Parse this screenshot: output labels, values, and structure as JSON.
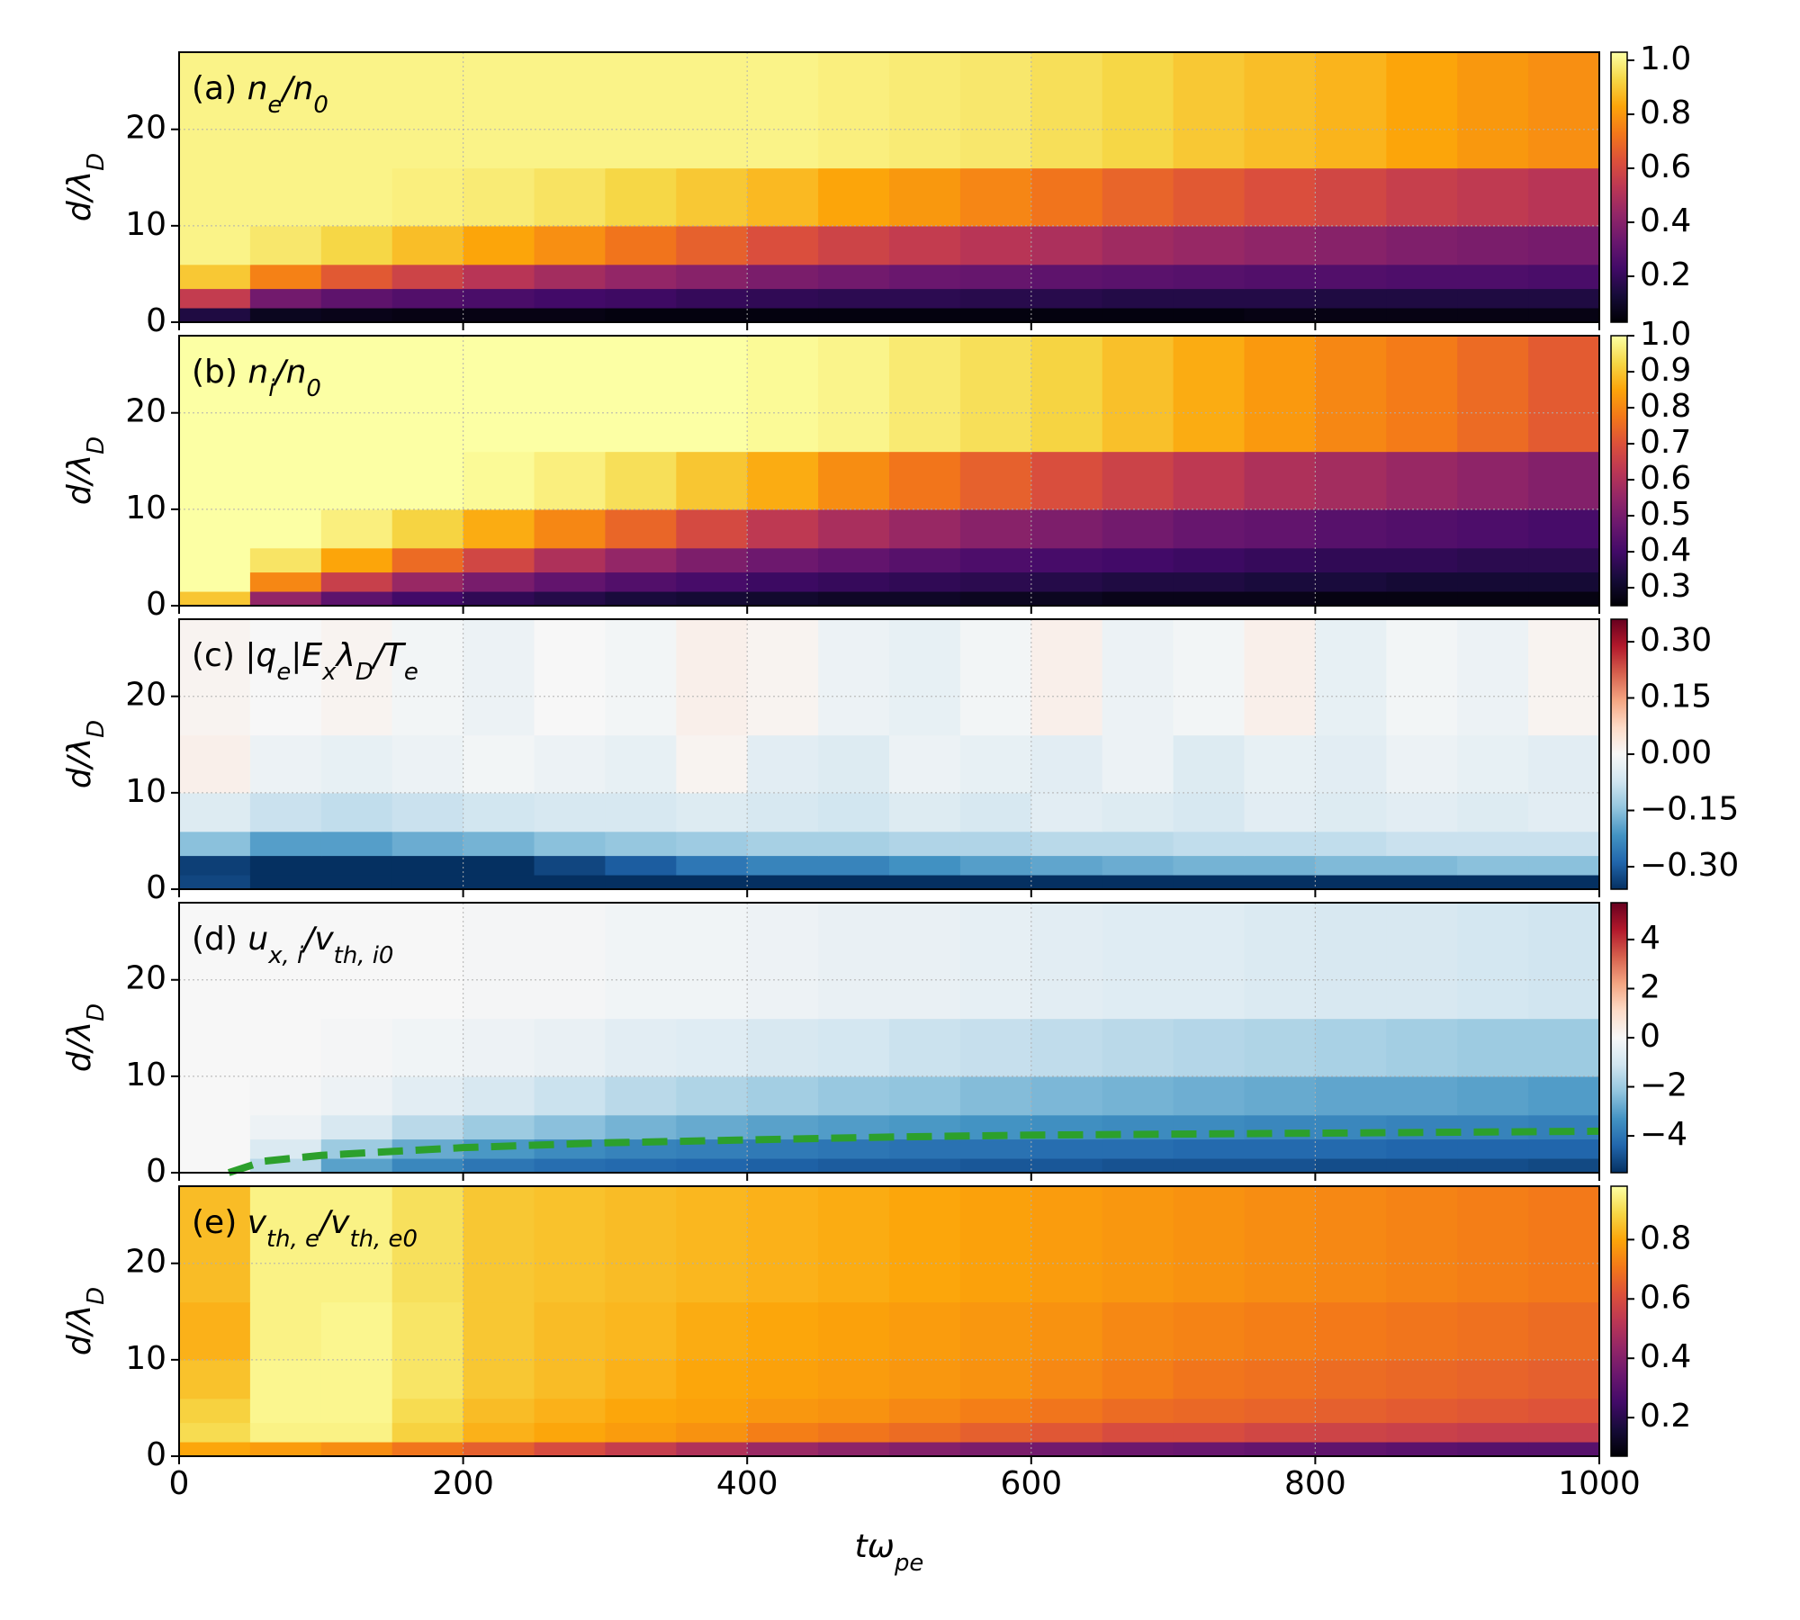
{
  "chart_data": {
    "type": "heatmap",
    "xlim": [
      0,
      1000
    ],
    "xticks": [
      0,
      200,
      400,
      600,
      800,
      1000
    ],
    "ylim": [
      0,
      28
    ],
    "yticks": [
      0,
      10,
      20
    ],
    "grid": true,
    "xlabel": [
      {
        "text": "t",
        "style": "it"
      },
      {
        "text": "ω",
        "style": "it"
      },
      {
        "text": "pe",
        "style": "sub"
      }
    ],
    "ylabel": [
      {
        "text": "d/λ",
        "style": "it"
      },
      {
        "text": "D",
        "style": "sub"
      }
    ],
    "x_edges": [
      0,
      50,
      100,
      150,
      200,
      250,
      300,
      350,
      400,
      450,
      500,
      550,
      600,
      650,
      700,
      750,
      800,
      850,
      900,
      950,
      1000
    ],
    "y_edges": [
      0,
      1.5,
      3.5,
      6,
      10,
      16,
      28
    ],
    "panels": [
      {
        "label": [
          {
            "text": "(a) "
          },
          {
            "text": "n",
            "style": "it"
          },
          {
            "text": "e",
            "style": "sub"
          },
          {
            "text": "/",
            "style": "it"
          },
          {
            "text": "n",
            "style": "it"
          },
          {
            "text": "0",
            "style": "sub"
          }
        ],
        "colormap": "inferno",
        "clim": [
          0.03,
          1.03
        ],
        "cticks": [
          0.2,
          0.4,
          0.6,
          0.8,
          {
            "value": 1,
            "label": "1.0"
          }
        ],
        "z": [
          [
            0.15,
            0.08,
            0.07,
            0.06,
            0.06,
            0.06,
            0.05,
            0.05,
            0.05,
            0.05,
            0.05,
            0.05,
            0.05,
            0.05,
            0.05,
            0.06,
            0.06,
            0.06,
            0.06,
            0.06
          ],
          [
            0.55,
            0.35,
            0.3,
            0.27,
            0.25,
            0.23,
            0.22,
            0.2,
            0.19,
            0.18,
            0.18,
            0.17,
            0.17,
            0.16,
            0.16,
            0.16,
            0.15,
            0.15,
            0.15,
            0.15
          ],
          [
            0.9,
            0.75,
            0.65,
            0.58,
            0.52,
            0.47,
            0.43,
            0.4,
            0.37,
            0.35,
            0.33,
            0.32,
            0.3,
            0.29,
            0.28,
            0.27,
            0.27,
            0.26,
            0.26,
            0.25
          ],
          [
            1.0,
            0.97,
            0.93,
            0.88,
            0.83,
            0.78,
            0.72,
            0.67,
            0.62,
            0.58,
            0.55,
            0.52,
            0.49,
            0.46,
            0.44,
            0.42,
            0.4,
            0.38,
            0.37,
            0.36
          ],
          [
            1.0,
            1.0,
            1.0,
            0.99,
            0.98,
            0.96,
            0.93,
            0.9,
            0.87,
            0.83,
            0.8,
            0.76,
            0.72,
            0.68,
            0.65,
            0.62,
            0.59,
            0.56,
            0.54,
            0.52
          ],
          [
            1.0,
            1.0,
            1.0,
            1.0,
            1.0,
            1.0,
            1.0,
            1.0,
            1.0,
            0.99,
            0.98,
            0.97,
            0.95,
            0.93,
            0.9,
            0.88,
            0.86,
            0.83,
            0.8,
            0.78
          ]
        ]
      },
      {
        "label": [
          {
            "text": "(b) "
          },
          {
            "text": "n",
            "style": "it"
          },
          {
            "text": "i",
            "style": "sub"
          },
          {
            "text": "/",
            "style": "it"
          },
          {
            "text": "n",
            "style": "it"
          },
          {
            "text": "0",
            "style": "sub"
          }
        ],
        "colormap": "inferno",
        "clim": [
          0.25,
          1.0
        ],
        "cticks": [
          0.3,
          0.4,
          0.5,
          0.6,
          0.7,
          0.8,
          0.9,
          {
            "value": 1,
            "label": "1.0"
          }
        ],
        "z": [
          [
            0.9,
            0.55,
            0.45,
            0.4,
            0.37,
            0.35,
            0.33,
            0.32,
            0.31,
            0.3,
            0.3,
            0.29,
            0.29,
            0.28,
            0.28,
            0.28,
            0.27,
            0.27,
            0.27,
            0.27
          ],
          [
            1.0,
            0.8,
            0.65,
            0.56,
            0.5,
            0.46,
            0.43,
            0.41,
            0.39,
            0.38,
            0.37,
            0.36,
            0.35,
            0.34,
            0.34,
            0.33,
            0.33,
            0.32,
            0.32,
            0.32
          ],
          [
            1.0,
            0.95,
            0.85,
            0.75,
            0.67,
            0.6,
            0.55,
            0.51,
            0.48,
            0.46,
            0.44,
            0.42,
            0.41,
            0.4,
            0.39,
            0.38,
            0.37,
            0.37,
            0.36,
            0.36
          ],
          [
            1.0,
            1.0,
            0.97,
            0.92,
            0.86,
            0.8,
            0.74,
            0.68,
            0.63,
            0.59,
            0.56,
            0.53,
            0.51,
            0.49,
            0.47,
            0.46,
            0.44,
            0.43,
            0.42,
            0.41
          ],
          [
            1.0,
            1.0,
            1.0,
            1.0,
            0.99,
            0.97,
            0.94,
            0.9,
            0.86,
            0.81,
            0.77,
            0.73,
            0.69,
            0.66,
            0.63,
            0.6,
            0.58,
            0.56,
            0.54,
            0.52
          ],
          [
            1.0,
            1.0,
            1.0,
            1.0,
            1.0,
            1.0,
            1.0,
            1.0,
            0.99,
            0.98,
            0.96,
            0.94,
            0.92,
            0.89,
            0.86,
            0.83,
            0.8,
            0.78,
            0.75,
            0.72
          ]
        ]
      },
      {
        "label": [
          {
            "text": "(c) |"
          },
          {
            "text": "q",
            "style": "it"
          },
          {
            "text": "e",
            "style": "sub"
          },
          {
            "text": "|"
          },
          {
            "text": "E",
            "style": "it"
          },
          {
            "text": "x",
            "style": "sub"
          },
          {
            "text": "λ",
            "style": "it"
          },
          {
            "text": "D",
            "style": "sub"
          },
          {
            "text": "/",
            "style": "it"
          },
          {
            "text": "T",
            "style": "it"
          },
          {
            "text": "e",
            "style": "sub"
          }
        ],
        "colormap": "RdBu_r",
        "clim": [
          -0.36,
          0.36
        ],
        "cticks": [
          {
            "value": -0.3,
            "label": "−0.30"
          },
          {
            "value": -0.15,
            "label": "−0.15"
          },
          {
            "value": 0,
            "label": "0.00"
          },
          {
            "value": 0.15,
            "label": "0.15"
          },
          {
            "value": 0.3,
            "label": "0.30"
          }
        ],
        "z": [
          [
            -0.33,
            -0.36,
            -0.36,
            -0.36,
            -0.36,
            -0.36,
            -0.36,
            -0.36,
            -0.36,
            -0.36,
            -0.36,
            -0.36,
            -0.36,
            -0.36,
            -0.36,
            -0.36,
            -0.36,
            -0.36,
            -0.36,
            -0.36
          ],
          [
            -0.34,
            -0.36,
            -0.36,
            -0.36,
            -0.36,
            -0.33,
            -0.3,
            -0.26,
            -0.24,
            -0.24,
            -0.22,
            -0.2,
            -0.19,
            -0.18,
            -0.17,
            -0.17,
            -0.16,
            -0.16,
            -0.15,
            -0.15
          ],
          [
            -0.15,
            -0.2,
            -0.2,
            -0.18,
            -0.17,
            -0.15,
            -0.14,
            -0.13,
            -0.12,
            -0.12,
            -0.11,
            -0.11,
            -0.1,
            -0.1,
            -0.09,
            -0.09,
            -0.09,
            -0.08,
            -0.08,
            -0.08
          ],
          [
            -0.05,
            -0.08,
            -0.09,
            -0.08,
            -0.07,
            -0.06,
            -0.06,
            -0.05,
            -0.06,
            -0.07,
            -0.05,
            -0.06,
            -0.04,
            -0.05,
            -0.06,
            -0.04,
            -0.05,
            -0.04,
            -0.05,
            -0.04
          ],
          [
            0.02,
            -0.02,
            -0.03,
            -0.02,
            -0.01,
            -0.02,
            -0.03,
            0.01,
            -0.04,
            -0.05,
            -0.02,
            -0.03,
            -0.04,
            -0.02,
            -0.05,
            -0.03,
            -0.04,
            -0.02,
            -0.03,
            -0.04
          ],
          [
            0.01,
            0,
            0.01,
            -0.01,
            -0.02,
            0,
            -0.01,
            0.02,
            0.01,
            -0.02,
            -0.03,
            -0.01,
            0.02,
            -0.02,
            -0.01,
            0.02,
            -0.03,
            -0.01,
            -0.02,
            0.01
          ]
        ]
      },
      {
        "label": [
          {
            "text": "(d) "
          },
          {
            "text": "u",
            "style": "it"
          },
          {
            "text": "x, i",
            "style": "sub"
          },
          {
            "text": "/",
            "style": "it"
          },
          {
            "text": "v",
            "style": "it"
          },
          {
            "text": "th, i0",
            "style": "sub"
          }
        ],
        "colormap": "RdBu_r",
        "clim": [
          -5.5,
          5.5
        ],
        "cticks": [
          {
            "value": -4,
            "label": "−4"
          },
          {
            "value": -2,
            "label": "−2"
          },
          0,
          2,
          4
        ],
        "z": [
          [
            0,
            -1.5,
            -3.0,
            -3.6,
            -4.0,
            -4.2,
            -4.3,
            -4.4,
            -4.5,
            -4.6,
            -4.6,
            -4.7,
            -4.7,
            -4.8,
            -4.8,
            -4.8,
            -4.9,
            -4.9,
            -4.9,
            -5.0
          ],
          [
            0,
            -0.8,
            -2.0,
            -2.8,
            -3.2,
            -3.5,
            -3.7,
            -3.8,
            -3.9,
            -4.0,
            -4.1,
            -4.1,
            -4.2,
            -4.2,
            -4.3,
            -4.3,
            -4.3,
            -4.4,
            -4.4,
            -4.4
          ],
          [
            0,
            -0.3,
            -0.9,
            -1.5,
            -2.0,
            -2.3,
            -2.6,
            -2.8,
            -3.0,
            -3.1,
            -3.2,
            -3.3,
            -3.4,
            -3.5,
            -3.5,
            -3.6,
            -3.6,
            -3.7,
            -3.7,
            -3.8
          ],
          [
            0,
            -0.1,
            -0.3,
            -0.6,
            -0.9,
            -1.2,
            -1.5,
            -1.7,
            -1.9,
            -2.1,
            -2.2,
            -2.4,
            -2.5,
            -2.6,
            -2.7,
            -2.8,
            -2.9,
            -2.9,
            -3.0,
            -3.1
          ],
          [
            0,
            0,
            -0.1,
            -0.2,
            -0.3,
            -0.4,
            -0.6,
            -0.7,
            -0.9,
            -1.0,
            -1.2,
            -1.3,
            -1.4,
            -1.5,
            -1.6,
            -1.7,
            -1.8,
            -1.9,
            -2.0,
            -2.0
          ],
          [
            0,
            0,
            0,
            0,
            -0.1,
            -0.1,
            -0.2,
            -0.2,
            -0.3,
            -0.4,
            -0.4,
            -0.5,
            -0.6,
            -0.7,
            -0.7,
            -0.8,
            -0.9,
            -0.9,
            -1.0,
            -1.1
          ]
        ],
        "line": {
          "color": "#2ca02c",
          "dashed": true,
          "x": [
            35,
            60,
            100,
            150,
            200,
            300,
            400,
            500,
            600,
            700,
            800,
            900,
            1000
          ],
          "values": [
            0,
            1.2,
            1.8,
            2.2,
            2.6,
            3.1,
            3.4,
            3.7,
            3.9,
            4.0,
            4.1,
            4.2,
            4.3
          ]
        }
      },
      {
        "label": [
          {
            "text": "(e) "
          },
          {
            "text": "v",
            "style": "it"
          },
          {
            "text": "th, e",
            "style": "sub"
          },
          {
            "text": "/",
            "style": "it"
          },
          {
            "text": "v",
            "style": "it"
          },
          {
            "text": "th, e0",
            "style": "sub"
          }
        ],
        "colormap": "inferno",
        "clim": [
          0.07,
          0.98
        ],
        "cticks": [
          0.2,
          0.4,
          0.6,
          0.8
        ],
        "z": [
          [
            0.8,
            0.78,
            0.75,
            0.7,
            0.65,
            0.6,
            0.55,
            0.5,
            0.45,
            0.42,
            0.4,
            0.38,
            0.36,
            0.35,
            0.34,
            0.33,
            0.32,
            0.31,
            0.3,
            0.3
          ],
          [
            0.9,
            0.95,
            0.95,
            0.88,
            0.82,
            0.8,
            0.78,
            0.76,
            0.72,
            0.7,
            0.68,
            0.65,
            0.63,
            0.6,
            0.6,
            0.58,
            0.57,
            0.56,
            0.55,
            0.55
          ],
          [
            0.88,
            0.96,
            0.96,
            0.9,
            0.84,
            0.82,
            0.8,
            0.79,
            0.77,
            0.76,
            0.74,
            0.72,
            0.7,
            0.68,
            0.67,
            0.66,
            0.65,
            0.64,
            0.63,
            0.62
          ],
          [
            0.85,
            0.96,
            0.96,
            0.92,
            0.86,
            0.84,
            0.82,
            0.8,
            0.79,
            0.78,
            0.77,
            0.76,
            0.74,
            0.72,
            0.7,
            0.69,
            0.68,
            0.67,
            0.66,
            0.65
          ],
          [
            0.82,
            0.95,
            0.96,
            0.92,
            0.86,
            0.84,
            0.83,
            0.81,
            0.8,
            0.79,
            0.78,
            0.77,
            0.76,
            0.74,
            0.73,
            0.72,
            0.71,
            0.7,
            0.69,
            0.68
          ],
          [
            0.84,
            0.95,
            0.95,
            0.91,
            0.86,
            0.85,
            0.84,
            0.83,
            0.82,
            0.81,
            0.8,
            0.79,
            0.78,
            0.77,
            0.76,
            0.75,
            0.74,
            0.73,
            0.72,
            0.71
          ]
        ]
      }
    ]
  }
}
